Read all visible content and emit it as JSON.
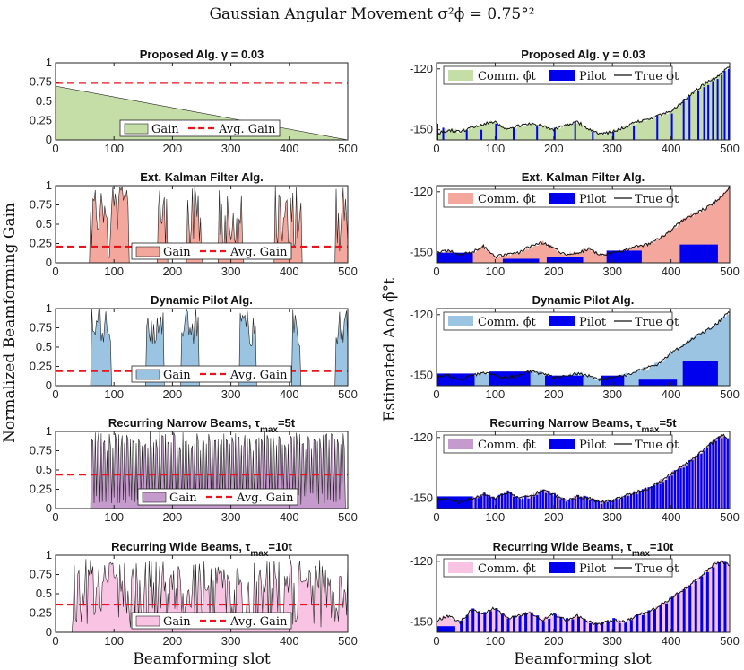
{
  "figure": {
    "title": "Gaussian Angular Movement σ²ϕ = 0.75°²",
    "left_ylabel": "Normalized Beamforming Gain",
    "right_ylabel": "Estimated AoA ϕ̂°t",
    "xlabel": "Beamforming slot"
  },
  "colors": {
    "proposed": "#c5dea8",
    "kalman": "#f4a79c",
    "dynamic": "#9bc3e2",
    "narrow": "#c49bcc",
    "wide": "#f9c4e4",
    "pilot": "#0000ee",
    "avg_line": "#e8141e",
    "true_line": "#111111"
  },
  "legend_labels": {
    "gain": "Gain",
    "avg": "Avg. Gain",
    "comm": "Comm. ϕ̂t",
    "pilot": "Pilot",
    "true": "True ϕt"
  },
  "chart_data": [
    {
      "panel": "gain-proposed",
      "type": "area",
      "title": "Proposed Alg. γ = 0.03",
      "xlim": [
        0,
        500
      ],
      "ylim": [
        0,
        1
      ],
      "xticks": [
        "0",
        "100",
        "200",
        "300",
        "400",
        "500"
      ],
      "yticks": [
        "0",
        "0.25",
        "0.5",
        "0.75",
        "1"
      ],
      "series": [
        {
          "values": {
            "start": 0,
            "end": 500,
            "step": 3,
            "period": 1,
            "low": 0.05,
            "high": 1.0
          }
        }
      ],
      "avg_gain": 0.74,
      "color_key": "proposed"
    },
    {
      "panel": "gain-kalman",
      "type": "area",
      "title": "Ext. Kalman Filter Alg.",
      "xlim": [
        0,
        500
      ],
      "ylim": [
        0,
        1
      ],
      "xticks": [
        "0",
        "100",
        "200",
        "300",
        "400",
        "500"
      ],
      "yticks": [
        "0",
        "0.25",
        "0.5",
        "0.75",
        "1"
      ],
      "series": [
        {
          "active_ranges": [
            [
              60,
              125
            ],
            [
              175,
              190
            ],
            [
              225,
              250
            ],
            [
              280,
              320
            ],
            [
              375,
              420
            ],
            [
              480,
              500
            ]
          ]
        }
      ],
      "avg_gain": 0.21,
      "color_key": "kalman"
    },
    {
      "panel": "gain-dynamic",
      "type": "area",
      "title": "Dynamic Pilot Alg.",
      "xlim": [
        0,
        500
      ],
      "ylim": [
        0,
        1
      ],
      "xticks": [
        "0",
        "100",
        "200",
        "300",
        "400",
        "500"
      ],
      "yticks": [
        "0",
        "0.25",
        "0.5",
        "0.75",
        "1"
      ],
      "series": [
        {
          "active_ranges": [
            [
              62,
              95
            ],
            [
              155,
              185
            ],
            [
              215,
              245
            ],
            [
              315,
              342
            ],
            [
              405,
              418
            ],
            [
              480,
              500
            ]
          ]
        }
      ],
      "avg_gain": 0.19,
      "color_key": "dynamic"
    },
    {
      "panel": "gain-narrow",
      "type": "area",
      "title": "Recurring Narrow Beams, τmax=5t",
      "xlim": [
        0,
        500
      ],
      "ylim": [
        0,
        1
      ],
      "xticks": [
        "0",
        "100",
        "200",
        "300",
        "400",
        "500"
      ],
      "yticks": [
        "0",
        "0.25",
        "0.5",
        "0.75",
        "1"
      ],
      "series": [
        {
          "active_ranges": [
            [
              62,
              495
            ]
          ]
        }
      ],
      "avg_gain": 0.44,
      "color_key": "narrow"
    },
    {
      "panel": "gain-wide",
      "type": "area",
      "title": "Recurring Wide Beams, τmax=10t",
      "xlim": [
        0,
        500
      ],
      "ylim": [
        0,
        1
      ],
      "xticks": [
        "0",
        "100",
        "200",
        "300",
        "400",
        "500"
      ],
      "yticks": [
        "0",
        "0.25",
        "0.5",
        "0.75",
        "1"
      ],
      "series": [
        {
          "active_ranges": [
            [
              30,
              500
            ]
          ]
        }
      ],
      "avg_gain": 0.36,
      "color_key": "wide"
    },
    {
      "panel": "aoa-proposed",
      "type": "bar",
      "title": "Proposed Alg. γ = 0.03",
      "xlim": [
        0,
        500
      ],
      "ylim": [
        -155,
        -117
      ],
      "xticks": [
        "0",
        "100",
        "200",
        "300",
        "400",
        "500"
      ],
      "yticks": [
        "-120",
        "-150"
      ],
      "true_phi": [
        [
          0,
          -152
        ],
        [
          20,
          -150
        ],
        [
          40,
          -151
        ],
        [
          60,
          -149
        ],
        [
          80,
          -147
        ],
        [
          100,
          -146
        ],
        [
          120,
          -150
        ],
        [
          140,
          -148
        ],
        [
          160,
          -147
        ],
        [
          180,
          -148
        ],
        [
          200,
          -150
        ],
        [
          220,
          -148
        ],
        [
          240,
          -146
        ],
        [
          260,
          -150
        ],
        [
          280,
          -152
        ],
        [
          300,
          -151
        ],
        [
          320,
          -149
        ],
        [
          340,
          -146
        ],
        [
          360,
          -145
        ],
        [
          380,
          -143
        ],
        [
          400,
          -141
        ],
        [
          420,
          -136
        ],
        [
          440,
          -131
        ],
        [
          460,
          -127
        ],
        [
          480,
          -124
        ],
        [
          490,
          -121
        ],
        [
          500,
          -119
        ]
      ],
      "pilot_bars": [
        [
          0,
          -147
        ],
        [
          10,
          -149
        ],
        [
          50,
          -150
        ],
        [
          75,
          -150
        ],
        [
          100,
          -147
        ],
        [
          130,
          -149
        ],
        [
          170,
          -148
        ],
        [
          200,
          -149
        ],
        [
          235,
          -146
        ],
        [
          265,
          -151
        ],
        [
          300,
          -151
        ],
        [
          335,
          -148
        ],
        [
          375,
          -143
        ],
        [
          400,
          -142
        ],
        [
          420,
          -135
        ],
        [
          430,
          -133
        ],
        [
          445,
          -131
        ],
        [
          455,
          -129
        ],
        [
          462,
          -128
        ],
        [
          470,
          -126
        ],
        [
          478,
          -125
        ],
        [
          485,
          -123
        ],
        [
          490,
          -121
        ],
        [
          497,
          -120
        ]
      ],
      "color_key": "proposed"
    },
    {
      "panel": "aoa-kalman",
      "type": "bar",
      "title": "Ext. Kalman Filter Alg.",
      "xlim": [
        0,
        500
      ],
      "ylim": [
        -155,
        -117
      ],
      "xticks": [
        "0",
        "100",
        "200",
        "300",
        "400",
        "500"
      ],
      "yticks": [
        "-120",
        "-150"
      ],
      "true_phi": [
        [
          0,
          -150
        ],
        [
          20,
          -149
        ],
        [
          40,
          -151
        ],
        [
          60,
          -150
        ],
        [
          80,
          -147
        ],
        [
          100,
          -152
        ],
        [
          120,
          -151
        ],
        [
          140,
          -150
        ],
        [
          160,
          -147
        ],
        [
          180,
          -145
        ],
        [
          200,
          -148
        ],
        [
          220,
          -151
        ],
        [
          240,
          -150
        ],
        [
          260,
          -148
        ],
        [
          280,
          -151
        ],
        [
          300,
          -150
        ],
        [
          320,
          -149
        ],
        [
          340,
          -147
        ],
        [
          360,
          -146
        ],
        [
          380,
          -143
        ],
        [
          400,
          -139
        ],
        [
          420,
          -134
        ],
        [
          440,
          -131
        ],
        [
          460,
          -128
        ],
        [
          480,
          -124
        ],
        [
          490,
          -121
        ],
        [
          500,
          -118
        ]
      ],
      "pilot_segments": [
        [
          0,
          62,
          -150
        ],
        [
          113,
          175,
          -153
        ],
        [
          188,
          250,
          -152
        ],
        [
          290,
          350,
          -149
        ],
        [
          415,
          480,
          -146
        ]
      ],
      "color_key": "kalman"
    },
    {
      "panel": "aoa-dynamic",
      "type": "bar",
      "title": "Dynamic Pilot Alg.",
      "xlim": [
        0,
        500
      ],
      "ylim": [
        -155,
        -117
      ],
      "xticks": [
        "0",
        "100",
        "200",
        "300",
        "400",
        "500"
      ],
      "yticks": [
        "-120",
        "-150"
      ],
      "true_phi": [
        [
          0,
          -151
        ],
        [
          20,
          -150
        ],
        [
          40,
          -152
        ],
        [
          60,
          -150
        ],
        [
          80,
          -149
        ],
        [
          100,
          -150
        ],
        [
          120,
          -151
        ],
        [
          140,
          -150
        ],
        [
          160,
          -148
        ],
        [
          180,
          -149
        ],
        [
          200,
          -151
        ],
        [
          220,
          -150
        ],
        [
          240,
          -149
        ],
        [
          260,
          -150
        ],
        [
          280,
          -152
        ],
        [
          300,
          -151
        ],
        [
          320,
          -150
        ],
        [
          340,
          -148
        ],
        [
          360,
          -146
        ],
        [
          380,
          -144
        ],
        [
          400,
          -139
        ],
        [
          420,
          -135
        ],
        [
          440,
          -131
        ],
        [
          460,
          -128
        ],
        [
          480,
          -124
        ],
        [
          490,
          -121
        ],
        [
          500,
          -119
        ]
      ],
      "pilot_segments": [
        [
          0,
          65,
          -149
        ],
        [
          90,
          160,
          -148
        ],
        [
          185,
          250,
          -150
        ],
        [
          280,
          320,
          -150
        ],
        [
          345,
          410,
          -152
        ],
        [
          420,
          480,
          -143
        ]
      ],
      "color_key": "dynamic"
    },
    {
      "panel": "aoa-narrow",
      "type": "bar",
      "title": "Recurring Narrow Beams, τmax=5t",
      "xlim": [
        0,
        500
      ],
      "ylim": [
        -155,
        -117
      ],
      "xticks": [
        "0",
        "100",
        "200",
        "300",
        "400",
        "500"
      ],
      "yticks": [
        "-120",
        "-150"
      ],
      "true_phi": [
        [
          0,
          -151
        ],
        [
          20,
          -150
        ],
        [
          40,
          -152
        ],
        [
          60,
          -150
        ],
        [
          80,
          -148
        ],
        [
          100,
          -150
        ],
        [
          120,
          -147
        ],
        [
          140,
          -150
        ],
        [
          160,
          -149
        ],
        [
          180,
          -146
        ],
        [
          200,
          -148
        ],
        [
          220,
          -151
        ],
        [
          240,
          -149
        ],
        [
          260,
          -150
        ],
        [
          280,
          -152
        ],
        [
          300,
          -151
        ],
        [
          320,
          -149
        ],
        [
          340,
          -147
        ],
        [
          360,
          -145
        ],
        [
          380,
          -142
        ],
        [
          400,
          -138
        ],
        [
          420,
          -134
        ],
        [
          440,
          -130
        ],
        [
          460,
          -125
        ],
        [
          480,
          -120
        ],
        [
          490,
          -119
        ],
        [
          500,
          -121
        ]
      ],
      "pilot_segments": [
        [
          0,
          62,
          -149
        ]
      ],
      "pilot_recurring": {
        "start": 65,
        "end": 500,
        "step": 5
      },
      "color_key": "narrow"
    },
    {
      "panel": "aoa-wide",
      "type": "bar",
      "title": "Recurring Wide Beams, τmax=10t",
      "xlim": [
        0,
        500
      ],
      "ylim": [
        -155,
        -117
      ],
      "xticks": [
        "0",
        "100",
        "200",
        "300",
        "400",
        "500"
      ],
      "yticks": [
        "-120",
        "-150"
      ],
      "true_phi": [
        [
          0,
          -149
        ],
        [
          20,
          -147
        ],
        [
          40,
          -150
        ],
        [
          60,
          -144
        ],
        [
          80,
          -146
        ],
        [
          100,
          -143
        ],
        [
          120,
          -148
        ],
        [
          140,
          -147
        ],
        [
          160,
          -145
        ],
        [
          180,
          -149
        ],
        [
          200,
          -146
        ],
        [
          220,
          -149
        ],
        [
          240,
          -147
        ],
        [
          260,
          -150
        ],
        [
          280,
          -151
        ],
        [
          300,
          -149
        ],
        [
          320,
          -150
        ],
        [
          340,
          -147
        ],
        [
          360,
          -145
        ],
        [
          380,
          -142
        ],
        [
          400,
          -138
        ],
        [
          420,
          -134
        ],
        [
          440,
          -130
        ],
        [
          460,
          -125
        ],
        [
          475,
          -121
        ],
        [
          485,
          -120
        ],
        [
          500,
          -122
        ]
      ],
      "pilot_segments": [
        [
          0,
          32,
          -152
        ]
      ],
      "pilot_recurring": {
        "start": 40,
        "end": 500,
        "step": 10
      },
      "color_key": "wide"
    }
  ]
}
